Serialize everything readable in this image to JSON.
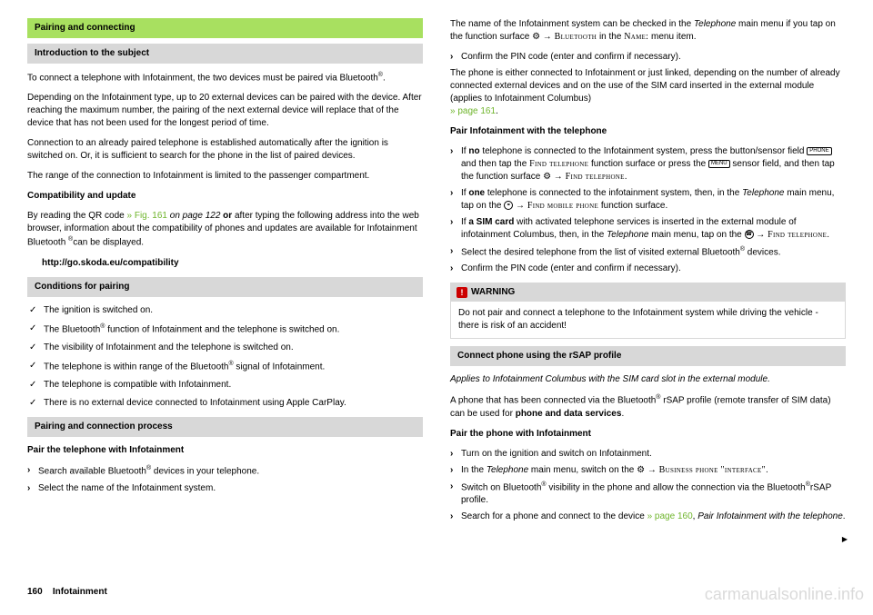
{
  "left": {
    "h_green": "Pairing and connecting",
    "h_intro": "Introduction to the subject",
    "p1_a": "To connect a telephone with Infotainment, the two devices must be paired via Bluetooth",
    "p1_b": ".",
    "p2": "Depending on the Infotainment type, up to 20 external devices can be paired with the device. After reaching the maximum number, the pairing of the next external device will replace that of the device that has not been used for the longest period of time.",
    "p3": "Connection to an already paired telephone is established automatically after the ignition is switched on. Or, it is sufficient to search for the phone in the list of paired devices.",
    "p4": "The range of the connection to Infotainment is limited to the passenger compartment.",
    "compat_h": "Compatibility and update",
    "compat_a": "By reading the QR code ",
    "compat_link": "» Fig. 161",
    "compat_b": " on page 122",
    "compat_or": " or ",
    "compat_c": "after typing the following address into the web browser, information about the compatibility of phones and updates are available for Infotainment Bluetooth ",
    "compat_d": "can be displayed.",
    "compat_url": "http://go.skoda.eu/compatibility",
    "h_cond": "Conditions for pairing",
    "cond1": "The ignition is switched on.",
    "cond2a": "The Bluetooth",
    "cond2b": " function of Infotainment and the telephone is switched on.",
    "cond3": "The visibility of Infotainment and the telephone is switched on.",
    "cond4a": "The telephone is within range of the Bluetooth",
    "cond4b": " signal of Infotainment.",
    "cond5": "The telephone is compatible with Infotainment.",
    "cond6": "There is no external device connected to Infotainment using Apple CarPlay.",
    "h_proc": "Pairing and connection process",
    "pair_h": "Pair the telephone with Infotainment",
    "pair1a": "Search available Bluetooth",
    "pair1b": " devices in your telephone.",
    "pair2": "Select the name of the Infotainment system."
  },
  "right": {
    "p1a": "The name of the Infotainment system can be checked in the ",
    "p1b": "Telephone",
    "p1c": " main menu if you tap on the function surface ",
    "p1d": " → ",
    "p1bt": "Bluetooth",
    "p1e": " in the ",
    "p1name": "Name:",
    "p1f": " menu item.",
    "b1": "Confirm the PIN code (enter and confirm if necessary).",
    "p2": "The phone is either connected to Infotainment or just linked, depending on the number of already connected external devices and on the use of the SIM card inserted in the external module (applies to Infotainment Columbus) ",
    "p2link": "» page 161",
    "p2end": ".",
    "pair_h": "Pair Infotainment with the telephone",
    "li1a": "If ",
    "li1no": "no",
    "li1b": " telephone is connected to the Infotainment system, press the button/sensor field ",
    "li1c": " and then tap the ",
    "li1find": "Find telephone",
    "li1d": " function surface or press the ",
    "li1e": " sensor field, and then tap the function surface ",
    "li1f": " → ",
    "li1find2": "Find telephone",
    "li1g": ".",
    "li2a": "If ",
    "li2one": "one",
    "li2b": " telephone is connected to the infotainment system, then, in the ",
    "li2tel": "Telephone",
    "li2c": " main menu, tap on the ",
    "li2d": " → ",
    "li2find": "Find mobile phone",
    "li2e": " function surface.",
    "li3a": "If ",
    "li3sim": "a SIM card",
    "li3b": " with activated telephone services is inserted in the external module of infotainment Columbus, then, in the ",
    "li3tel": "Telephone",
    "li3c": " main menu, tap on the ",
    "li3d": " → ",
    "li3find": "Find telephone",
    "li3e": ".",
    "li4a": "Select the desired telephone from the list of visited external Bluetooth",
    "li4b": " devices.",
    "li5": "Confirm the PIN code (enter and confirm if necessary).",
    "warn_h": "WARNING",
    "warn_b": "Do not pair and connect a telephone to the Infotainment system while driving the vehicle - there is risk of an accident!",
    "h_rsap": "Connect phone using the rSAP profile",
    "rsap_note": "Applies to Infotainment Columbus with the SIM card slot in the external module.",
    "rsap_p_a": "A phone that has been connected via the Bluetooth",
    "rsap_p_b": " rSAP profile (remote transfer of SIM data) can be used for ",
    "rsap_p_bold": "phone and data services",
    "rsap_p_c": ".",
    "rsap_pair_h": "Pair the phone with Infotainment",
    "r1": "Turn on the ignition and switch on Infotainment.",
    "r2a": "In the ",
    "r2tel": "Telephone",
    "r2b": " main menu, switch on the ",
    "r2c": " → ",
    "r2bp": "Business phone \"interface\"",
    "r2d": ".",
    "r3a": "Switch on Bluetooth",
    "r3b": " visibility in the phone and allow the connection via the Bluetooth",
    "r3c": "rSAP profile.",
    "r4a": "Search for a phone and connect to the device ",
    "r4link": "» page 160",
    "r4b": ", ",
    "r4i": "Pair Infotainment with the telephone",
    "r4c": "."
  },
  "footer": {
    "page": "160",
    "section": "Infotainment"
  },
  "watermark": "carmanualsonline.info",
  "icons": {
    "gear": "⚙",
    "phone": "PHONE",
    "menu": "MENU",
    "bt": "⚭",
    "hand": "☎"
  }
}
